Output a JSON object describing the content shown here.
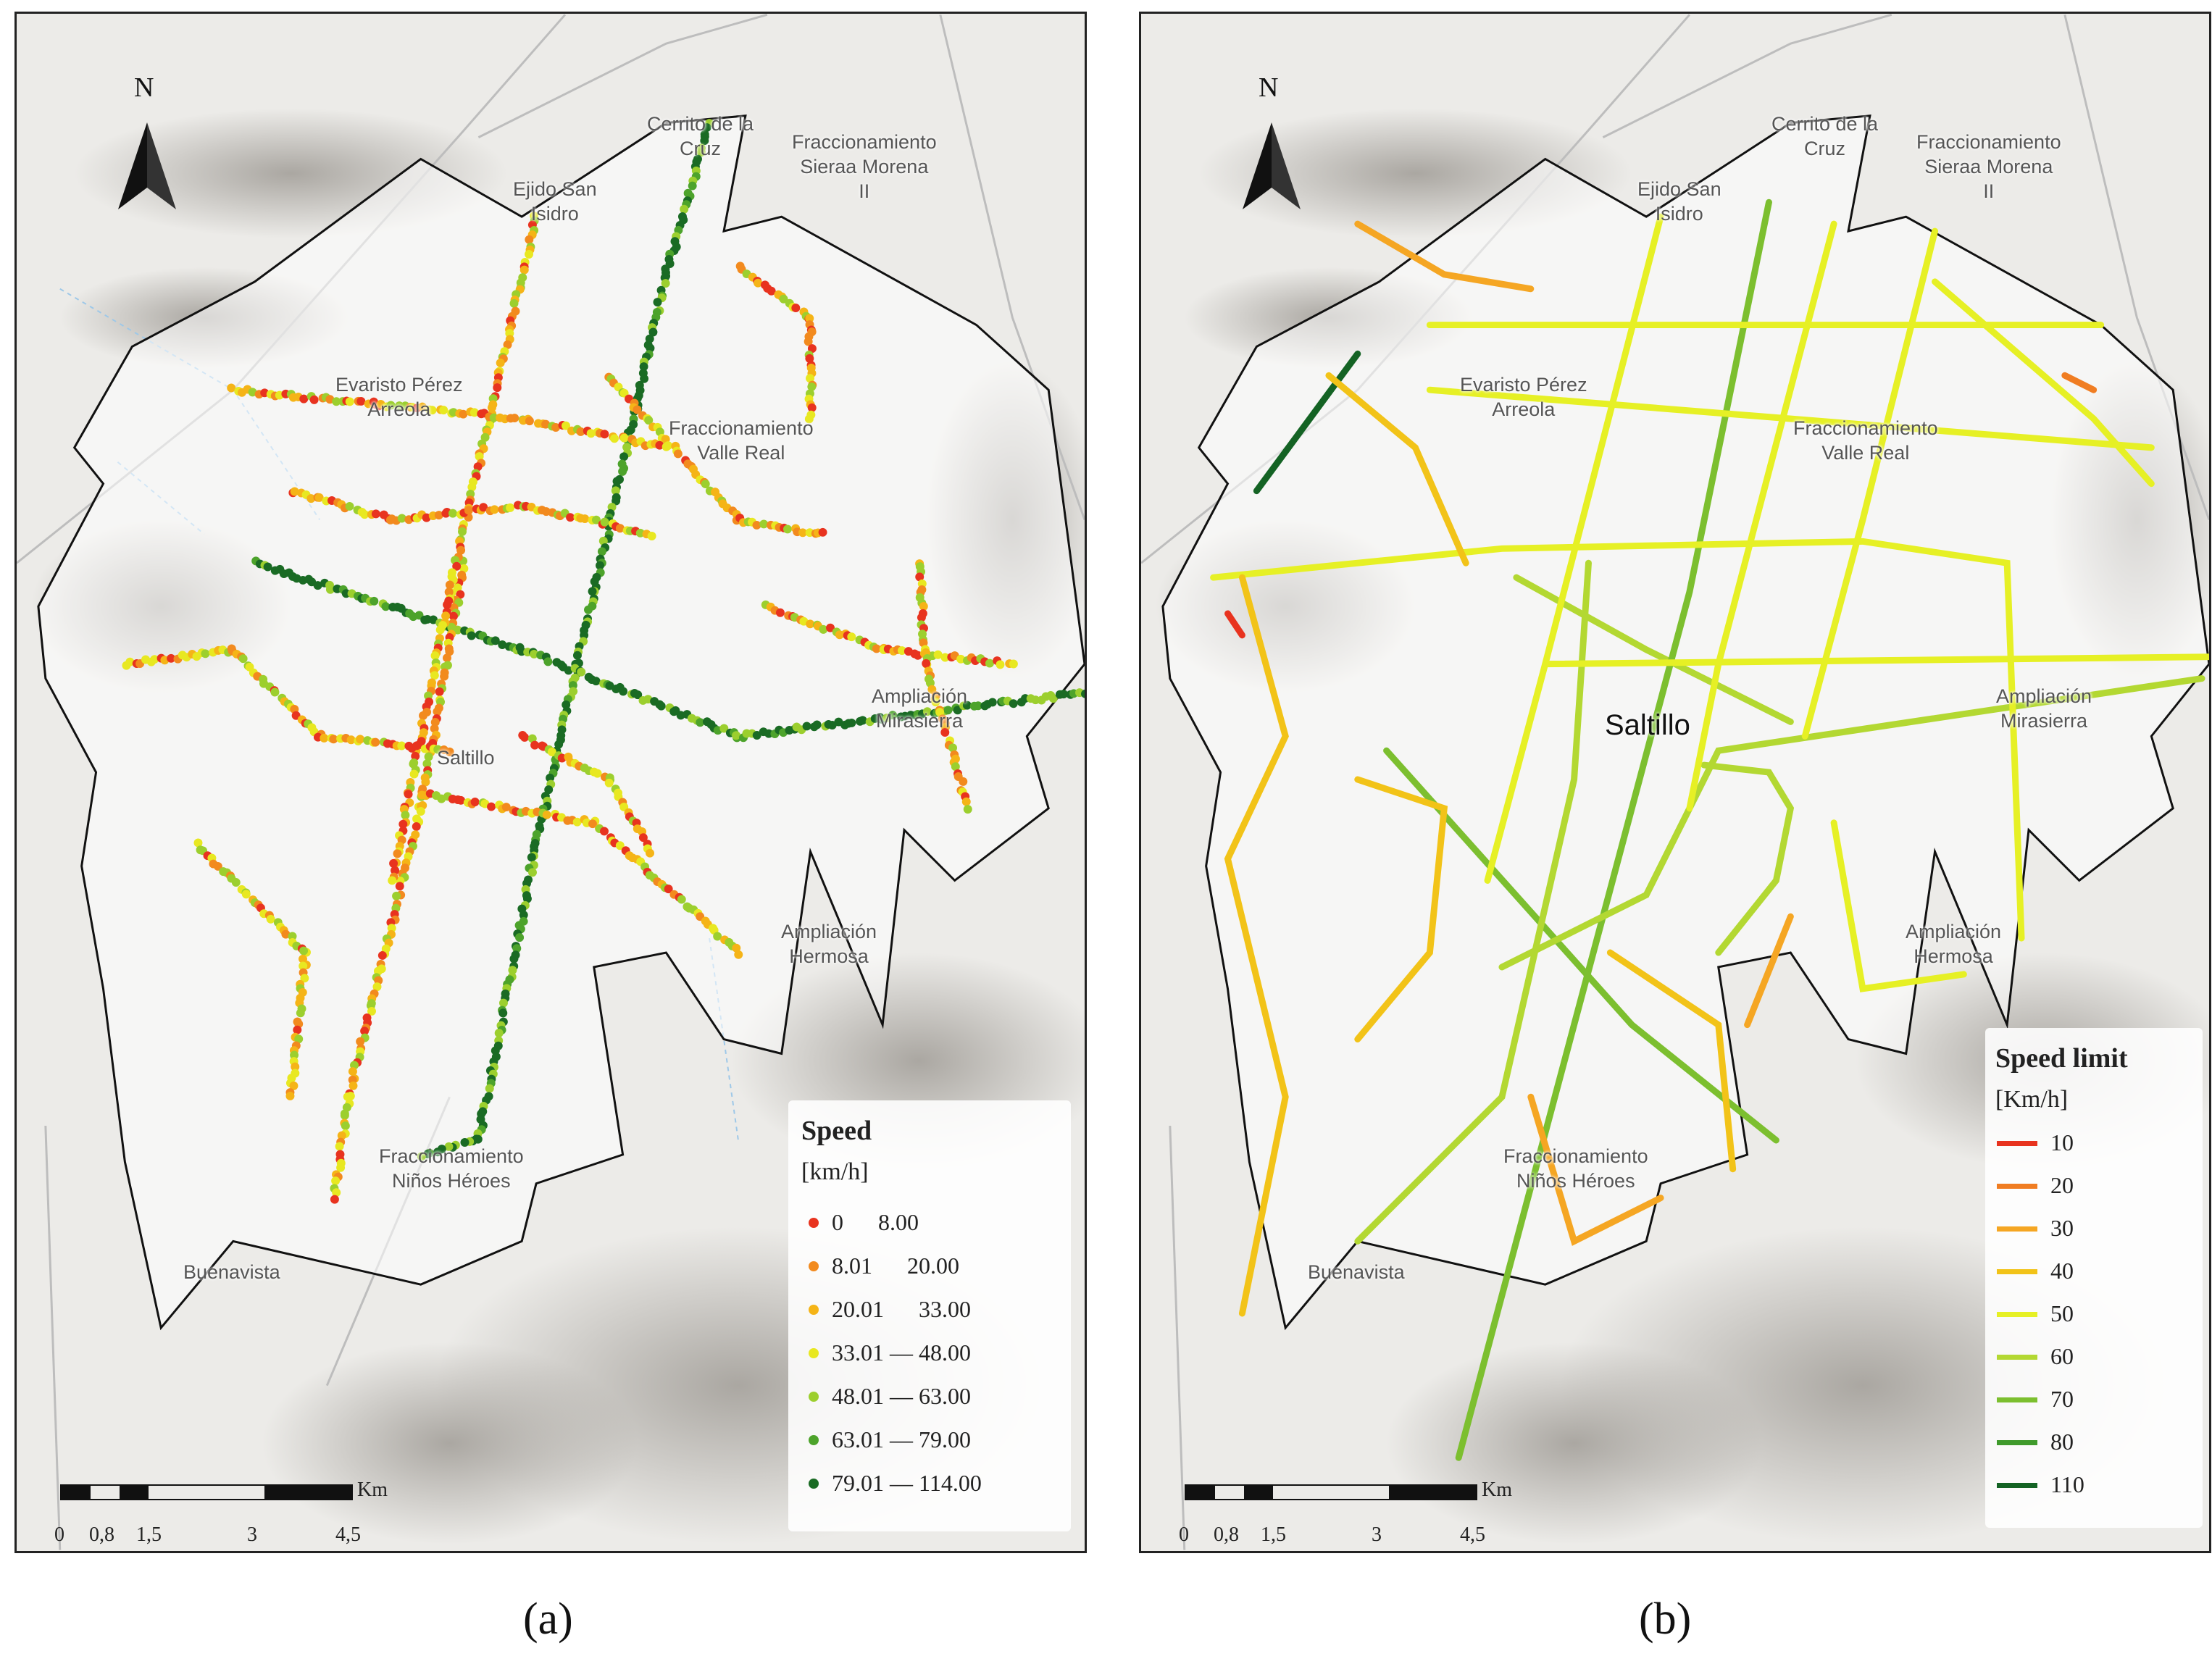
{
  "panels": {
    "a": {
      "caption": "(a)",
      "north": "N",
      "legend": {
        "title": "Speed",
        "unit": "[km/h]",
        "classes": [
          {
            "label": "0      8.00",
            "color": "#e8331f"
          },
          {
            "label": "8.01      20.00",
            "color": "#f28a1e"
          },
          {
            "label": "20.01      33.00",
            "color": "#f5b417"
          },
          {
            "label": "33.01 — 48.00",
            "color": "#e8e821"
          },
          {
            "label": "48.01 — 63.00",
            "color": "#9ccf2e"
          },
          {
            "label": "63.01 — 79.00",
            "color": "#4da32b"
          },
          {
            "label": "79.01 — 114.00",
            "color": "#1a6b24"
          }
        ]
      },
      "scale": {
        "unit": "Km",
        "ticks": [
          "0",
          "0,8",
          "1,5",
          "3",
          "4,5"
        ]
      },
      "places": {
        "cerrito": "Cerrito de la\nCruz",
        "fracc_sierra": "Fraccionamiento\nSieraa Morena\nII",
        "ejido": "Ejido San\nIsidro",
        "evaristo": "Evaristo Pérez\nArreola",
        "valle": "Fraccionamiento\nValle Real",
        "mirasierra": "Ampliación\nMirasierra",
        "hermosa": "Ampliación\nHermosa",
        "ninos": "Fraccionamiento\nNiños Héroes",
        "buenavista": "Buenavista",
        "saltillo": "Saltillo"
      }
    },
    "b": {
      "caption": "(b)",
      "north": "N",
      "legend": {
        "title": "Speed limit",
        "unit": "[Km/h]",
        "classes": [
          {
            "label": "10",
            "color": "#e8331f"
          },
          {
            "label": "20",
            "color": "#f07d22"
          },
          {
            "label": "30",
            "color": "#f5a623"
          },
          {
            "label": "40",
            "color": "#f2c318"
          },
          {
            "label": "50",
            "color": "#e6f025"
          },
          {
            "label": "60",
            "color": "#b3d832"
          },
          {
            "label": "70",
            "color": "#7cbf2f"
          },
          {
            "label": "80",
            "color": "#3f9a2b"
          },
          {
            "label": "110",
            "color": "#146324"
          }
        ]
      },
      "scale": {
        "unit": "Km",
        "ticks": [
          "0",
          "0,8",
          "1,5",
          "3",
          "4,5"
        ]
      },
      "places": {
        "cerrito": "Cerrito de la\nCruz",
        "fracc_sierra": "Fraccionamiento\nSieraa Morena\nII",
        "ejido": "Ejido San\nIsidro",
        "evaristo": "Evaristo Pérez\nArreola",
        "valle": "Fraccionamiento\nValle Real",
        "mirasierra": "Ampliación\nMirasierra",
        "hermosa": "Ampliación\nHermosa",
        "ninos": "Fraccionamiento\nNiños Héroes",
        "buenavista": "Buenavista",
        "saltillo": "Saltillo"
      }
    }
  }
}
